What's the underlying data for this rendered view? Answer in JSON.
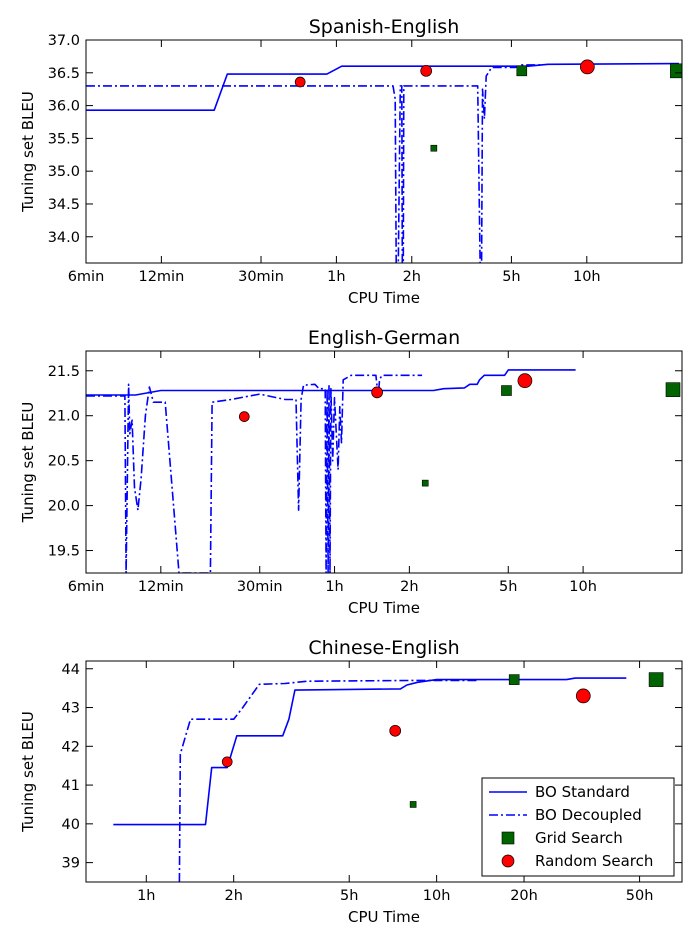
{
  "styles": {
    "line_color": "#0000ff",
    "grid_color": "#006400",
    "random_color": "#ff0000",
    "marker_edge": "#000000"
  },
  "legend": {
    "placement": "lower-right",
    "entries": [
      "BO Standard",
      "BO Decoupled",
      "Grid Search",
      "Random Search"
    ]
  },
  "chart_data": [
    {
      "type": "line",
      "title": "Spanish-English",
      "xlabel": "CPU Time",
      "ylabel": "Tuning set BLEU",
      "xscale": "log",
      "x_unit": "minutes",
      "xlim": [
        6,
        1440
      ],
      "ylim": [
        33.6,
        37.0
      ],
      "xticks": [
        {
          "value": 6,
          "label": "6min"
        },
        {
          "value": 12,
          "label": "12min"
        },
        {
          "value": 30,
          "label": "30min"
        },
        {
          "value": 60,
          "label": "1h"
        },
        {
          "value": 120,
          "label": "2h"
        },
        {
          "value": 300,
          "label": "5h"
        },
        {
          "value": 600,
          "label": "10h"
        }
      ],
      "yticks": [
        {
          "value": 34.0,
          "label": "34.0"
        },
        {
          "value": 34.5,
          "label": "34.5"
        },
        {
          "value": 35.0,
          "label": "35.0"
        },
        {
          "value": 35.5,
          "label": "35.5"
        },
        {
          "value": 36.0,
          "label": "36.0"
        },
        {
          "value": 36.5,
          "label": "36.5"
        },
        {
          "value": 37.0,
          "label": "37.0"
        }
      ],
      "series": [
        {
          "name": "BO Standard",
          "style": "solid",
          "points": [
            [
              6,
              35.93
            ],
            [
              19.5,
              35.93
            ],
            [
              22,
              36.48
            ],
            [
              55,
              36.48
            ],
            [
              63,
              36.6
            ],
            [
              350,
              36.6
            ],
            [
              420,
              36.63
            ],
            [
              1400,
              36.64
            ]
          ]
        },
        {
          "name": "BO Decoupled",
          "style": "dashdot",
          "points": [
            [
              6,
              36.3
            ],
            [
              101,
              36.3
            ],
            [
              103,
              36.1
            ],
            [
              104,
              33.6
            ],
            [
              106,
              33.6
            ],
            [
              108,
              36.3
            ],
            [
              109.5,
              36.3
            ],
            [
              110,
              33.6
            ],
            [
              111,
              33.6
            ],
            [
              111.5,
              36.3
            ],
            [
              220,
              36.3
            ],
            [
              225,
              33.6
            ],
            [
              228,
              33.6
            ],
            [
              230,
              36.25
            ],
            [
              234,
              35.8
            ],
            [
              238,
              36.45
            ],
            [
              250,
              36.58
            ],
            [
              310,
              36.58
            ],
            [
              330,
              36.62
            ],
            [
              400,
              36.62
            ]
          ]
        },
        {
          "name": "Grid Search",
          "marker": "square",
          "points": [
            [
              147,
              35.35,
              6
            ],
            [
              330,
              36.53,
              10
            ],
            [
              1380,
              36.53,
              14
            ]
          ]
        },
        {
          "name": "Random Search",
          "marker": "circle",
          "points": [
            [
              43,
              36.36,
              10
            ],
            [
              137,
              36.53,
              11
            ],
            [
              603,
              36.59,
              14
            ]
          ]
        }
      ]
    },
    {
      "type": "line",
      "title": "English-German",
      "xlabel": "CPU Time",
      "ylabel": "Tuning set BLEU",
      "xscale": "log",
      "x_unit": "minutes",
      "xlim": [
        6,
        1500
      ],
      "ylim": [
        19.25,
        21.72
      ],
      "xticks": [
        {
          "value": 6,
          "label": "6min"
        },
        {
          "value": 12,
          "label": "12min"
        },
        {
          "value": 30,
          "label": "30min"
        },
        {
          "value": 60,
          "label": "1h"
        },
        {
          "value": 120,
          "label": "2h"
        },
        {
          "value": 300,
          "label": "5h"
        },
        {
          "value": 600,
          "label": "10h"
        }
      ],
      "yticks": [
        {
          "value": 19.5,
          "label": "19.5"
        },
        {
          "value": 20.0,
          "label": "20.0"
        },
        {
          "value": 20.5,
          "label": "20.5"
        },
        {
          "value": 21.0,
          "label": "21.0"
        },
        {
          "value": 21.5,
          "label": "21.5"
        }
      ],
      "series": [
        {
          "name": "BO Standard",
          "style": "solid",
          "points": [
            [
              6,
              21.23
            ],
            [
              9.5,
              21.23
            ],
            [
              12,
              21.28
            ],
            [
              150,
              21.28
            ],
            [
              165,
              21.3
            ],
            [
              200,
              21.31
            ],
            [
              210,
              21.35
            ],
            [
              225,
              21.35
            ],
            [
              230,
              21.4
            ],
            [
              240,
              21.45
            ],
            [
              290,
              21.45
            ],
            [
              300,
              21.51
            ],
            [
              560,
              21.51
            ]
          ]
        },
        {
          "name": "BO Decoupled",
          "style": "dashdot",
          "points": [
            [
              6,
              21.22
            ],
            [
              8.6,
              21.22
            ],
            [
              8.7,
              19.25
            ],
            [
              8.9,
              21.35
            ],
            [
              9.0,
              20.8
            ],
            [
              9.2,
              20.95
            ],
            [
              9.4,
              20.2
            ],
            [
              9.7,
              19.95
            ],
            [
              10.0,
              20.3
            ],
            [
              10.4,
              21.0
            ],
            [
              10.8,
              21.32
            ],
            [
              11.2,
              21.15
            ],
            [
              12.5,
              21.15
            ],
            [
              14.2,
              19.25
            ],
            [
              19.0,
              19.25
            ],
            [
              19.3,
              21.15
            ],
            [
              23,
              21.18
            ],
            [
              30,
              21.24
            ],
            [
              38,
              21.18
            ],
            [
              42,
              21.18
            ],
            [
              43,
              19.95
            ],
            [
              44,
              21.18
            ],
            [
              45,
              21.34
            ],
            [
              50,
              21.35
            ],
            [
              52,
              21.3
            ],
            [
              55,
              21.3
            ],
            [
              55.5,
              19.25
            ],
            [
              56,
              21.3
            ],
            [
              56.5,
              19.25
            ],
            [
              57,
              21.35
            ],
            [
              57.5,
              19.25
            ],
            [
              58,
              21.3
            ],
            [
              59,
              20.5
            ],
            [
              60,
              21.2
            ],
            [
              62,
              20.4
            ],
            [
              63,
              21.1
            ],
            [
              64,
              20.7
            ],
            [
              65,
              21.4
            ],
            [
              70,
              21.45
            ],
            [
              88,
              21.45
            ],
            [
              90,
              21.2
            ],
            [
              91,
              21.4
            ],
            [
              93,
              21.45
            ],
            [
              110,
              21.45
            ],
            [
              135,
              21.45
            ]
          ]
        },
        {
          "name": "Grid Search",
          "marker": "square",
          "points": [
            [
              139,
              20.25,
              6
            ],
            [
              295,
              21.28,
              10
            ],
            [
              1380,
              21.29,
              14
            ]
          ]
        },
        {
          "name": "Random Search",
          "marker": "circle",
          "points": [
            [
              26,
              20.99,
              10
            ],
            [
              89,
              21.26,
              11
            ],
            [
              350,
              21.39,
              14
            ]
          ]
        }
      ]
    },
    {
      "type": "line",
      "title": "Chinese-English",
      "xlabel": "CPU Time",
      "ylabel": "Tuning set BLEU",
      "xscale": "log",
      "x_unit": "hours",
      "xlim": [
        0.62,
        70
      ],
      "ylim": [
        38.5,
        44.2
      ],
      "xticks": [
        {
          "value": 1,
          "label": "1h"
        },
        {
          "value": 2,
          "label": "2h"
        },
        {
          "value": 5,
          "label": "5h"
        },
        {
          "value": 10,
          "label": "10h"
        },
        {
          "value": 20,
          "label": "20h"
        },
        {
          "value": 50,
          "label": "50h"
        }
      ],
      "yticks": [
        {
          "value": 39,
          "label": "39"
        },
        {
          "value": 40,
          "label": "40"
        },
        {
          "value": 41,
          "label": "41"
        },
        {
          "value": 42,
          "label": "42"
        },
        {
          "value": 43,
          "label": "43"
        },
        {
          "value": 44,
          "label": "44"
        }
      ],
      "series": [
        {
          "name": "BO Standard",
          "style": "solid",
          "points": [
            [
              0.77,
              39.98
            ],
            [
              1.6,
              39.98
            ],
            [
              1.68,
              41.45
            ],
            [
              1.9,
              41.45
            ],
            [
              2.05,
              42.27
            ],
            [
              2.95,
              42.27
            ],
            [
              3.1,
              42.7
            ],
            [
              3.25,
              43.45
            ],
            [
              7.5,
              43.48
            ],
            [
              7.9,
              43.58
            ],
            [
              8.6,
              43.65
            ],
            [
              10,
              43.72
            ],
            [
              28,
              43.72
            ],
            [
              30,
              43.76
            ],
            [
              45,
              43.76
            ]
          ]
        },
        {
          "name": "BO Decoupled",
          "style": "dashdot",
          "points": [
            [
              1.3,
              38.5
            ],
            [
              1.31,
              41.8
            ],
            [
              1.42,
              42.7
            ],
            [
              2.0,
              42.7
            ],
            [
              2.15,
              43.0
            ],
            [
              2.45,
              43.6
            ],
            [
              3.0,
              43.62
            ],
            [
              3.6,
              43.68
            ],
            [
              9.0,
              43.7
            ],
            [
              14,
              43.7
            ]
          ]
        },
        {
          "name": "Grid Search",
          "marker": "square",
          "points": [
            [
              8.3,
              40.5,
              6
            ],
            [
              18.5,
              43.72,
              10
            ],
            [
              57,
              43.72,
              14
            ]
          ]
        },
        {
          "name": "Random Search",
          "marker": "circle",
          "points": [
            [
              1.9,
              41.6,
              10
            ],
            [
              7.2,
              42.4,
              11
            ],
            [
              32,
              43.3,
              14
            ]
          ]
        }
      ]
    }
  ]
}
